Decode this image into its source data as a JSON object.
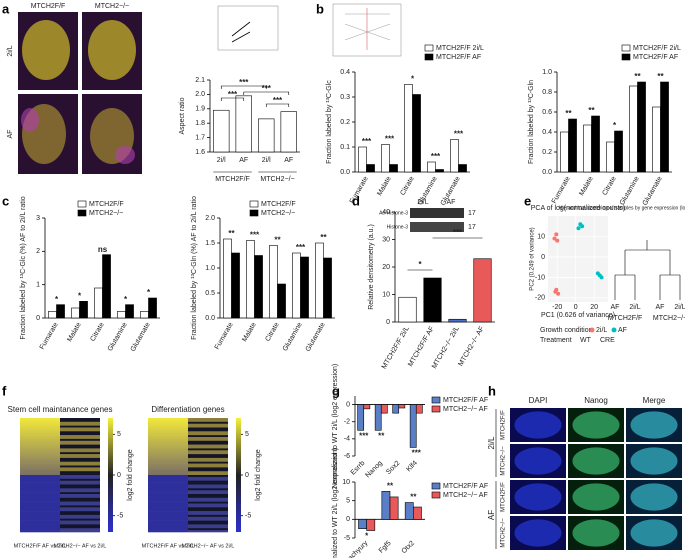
{
  "panel_labels": [
    "a",
    "b",
    "c",
    "d",
    "e",
    "f",
    "g",
    "h"
  ],
  "panel_a_images": {
    "columns": [
      "MTCH2F/F",
      "MTCH2−/−"
    ],
    "rows": [
      "2i/L",
      "AF"
    ]
  },
  "panel_d_blot": {
    "conditions": [
      "2i/L",
      "AF"
    ],
    "proteins": [
      "Ac-Histone-3",
      "Histone-3"
    ],
    "sizes": [
      "17",
      "17"
    ]
  },
  "panel_f": {
    "titles": [
      "Stem cell maintanance genes",
      "Differentiation genes"
    ],
    "columns": [
      "MTCH2F/F AF vs 2i/L",
      "MTCH2−/− AF vs 2i/L"
    ],
    "colorbar_label": "log2 fold change",
    "colorbar_ticks": [
      5,
      0,
      -5
    ]
  },
  "panel_h": {
    "columns": [
      "DAPI",
      "Nanog",
      "Merge"
    ],
    "conditions": [
      "2i/L",
      "AF"
    ],
    "genotypes": [
      "MTCH2F/F",
      "MTCH2−/−",
      "MTCH2F/F",
      "MTCH2−/−"
    ]
  },
  "chart_data": [
    {
      "type": "bar",
      "ylabel": "Aspect ratio",
      "categories": [
        "2i/l",
        "AF",
        "2i/l",
        "AF"
      ],
      "groups": [
        "MTCH2F/F",
        "MTCH2−/−"
      ],
      "values": [
        1.89,
        1.99,
        1.83,
        1.88
      ],
      "color": "#ffffff",
      "ylim": [
        1.6,
        2.1
      ],
      "yticks": [
        1.6,
        1.7,
        1.8,
        1.9,
        {
          "value": 2,
          "label": "2.0"
        },
        2.1
      ],
      "annotations": [
        "***",
        "***",
        "***",
        "***"
      ]
    },
    {
      "type": "bar",
      "ylabel": "Fraction labeled by ¹³C-Glc",
      "categories": [
        "Fumarate",
        "Malate",
        "Citrate",
        "Glutamine",
        "Glutamate"
      ],
      "series": [
        {
          "name": "MTCH2F/F 2i/L",
          "color": "#ffffff",
          "values": [
            0.1,
            0.11,
            0.35,
            0.04,
            0.13
          ]
        },
        {
          "name": "MTCH2F/F AF",
          "color": "#000000",
          "values": [
            0.03,
            0.03,
            0.31,
            0.01,
            0.03
          ]
        }
      ],
      "ylim": [
        0,
        0.4
      ],
      "yticks": [
        {
          "value": 0,
          "label": "0.0"
        },
        0.1,
        0.2,
        0.3,
        0.4
      ],
      "annotations": [
        "***",
        "***",
        "*",
        "***",
        "***"
      ]
    },
    {
      "type": "bar",
      "ylabel": "Fraction labeled by ¹³C-Gln",
      "categories": [
        "Fumarate",
        "Malate",
        "Citrate",
        "Glutamine",
        "Glutamate"
      ],
      "series": [
        {
          "name": "MTCH2F/F 2i/L",
          "color": "#ffffff",
          "values": [
            0.4,
            0.47,
            0.3,
            0.86,
            0.65
          ]
        },
        {
          "name": "MTCH2F/F AF",
          "color": "#000000",
          "values": [
            0.53,
            0.56,
            0.41,
            0.9,
            0.9
          ]
        }
      ],
      "ylim": [
        0,
        1
      ],
      "yticks": [
        {
          "value": 0,
          "label": "0.0"
        },
        0.2,
        0.4,
        0.6,
        0.8,
        {
          "value": 1,
          "label": "1.0"
        }
      ],
      "annotations": [
        "**",
        "**",
        "*",
        "**",
        "**"
      ]
    },
    {
      "type": "bar",
      "ylabel": "Fraction labeled by ¹³C-Glc (%) AF to 2i/L ratio",
      "categories": [
        "Fumarate",
        "Malate",
        "Citrate",
        "Glutamine",
        "Glutamate"
      ],
      "series": [
        {
          "name": "MTCH2F/F",
          "color": "#ffffff",
          "values": [
            0.2,
            0.3,
            0.9,
            0.2,
            0.2
          ]
        },
        {
          "name": "MTCH2−/−",
          "color": "#000000",
          "values": [
            0.4,
            0.5,
            1.9,
            0.4,
            0.6
          ]
        }
      ],
      "ylim": [
        0,
        3
      ],
      "yticks": [
        0,
        1,
        2,
        3
      ],
      "annotations": [
        "*",
        "*",
        "ns",
        "*",
        "*"
      ]
    },
    {
      "type": "bar",
      "ylabel": "Fraction labeled by ¹³C-Gln (%) AF to 2i/L ratio",
      "categories": [
        "Fumarate",
        "Malate",
        "Citrate",
        "Glutamine",
        "Glutamate"
      ],
      "series": [
        {
          "name": "MTCH2F/F",
          "color": "#ffffff",
          "values": [
            1.58,
            1.55,
            1.45,
            1.3,
            1.5
          ]
        },
        {
          "name": "MTCH2−/−",
          "color": "#000000",
          "values": [
            1.3,
            1.25,
            0.68,
            1.22,
            1.2
          ]
        }
      ],
      "ylim": [
        0,
        2
      ],
      "yticks": [
        {
          "value": 0,
          "label": "0.0"
        },
        0.5,
        {
          "value": 1,
          "label": "1.0"
        },
        1.5,
        {
          "value": 2,
          "label": "2.0"
        }
      ],
      "annotations": [
        "**",
        "***",
        "**",
        "***",
        "**"
      ]
    },
    {
      "type": "bar",
      "ylabel": "Relative densitometry (a.u.)",
      "categories": [
        "MTCH2F/F 2i/L",
        "MTCH2F/F AF",
        "MTCH2−/− 2i/L",
        "MTCH2−/− AF"
      ],
      "values": [
        9,
        16,
        1,
        23
      ],
      "colors": [
        "#ffffff",
        "#000000",
        "#4a6fd0",
        "#e8595a"
      ],
      "ylim": [
        0,
        40
      ],
      "yticks": [
        0,
        10,
        20,
        30,
        40
      ],
      "annotations": [
        "*",
        "***"
      ]
    },
    {
      "type": "scatter",
      "title": "PCA of log(normalized counts)",
      "xlabel": "PC1 (0.626 of variance)",
      "ylabel": "PC2 (0.249 of variance)",
      "series": [
        {
          "name": "2i/L",
          "color": "#f8766d",
          "x": [
            -23,
            -21,
            -20,
            -22,
            -21,
            -19
          ],
          "y": [
            9,
            11,
            8,
            -17,
            -16,
            -18
          ]
        },
        {
          "name": "AF",
          "color": "#00bfc4",
          "x": [
            3,
            5,
            7,
            24,
            26,
            28
          ],
          "y": [
            14,
            16,
            15,
            -8,
            -9,
            -10
          ]
        }
      ],
      "legend_title": "Growth condition",
      "treatment_title": "Treatment",
      "treatments": [
        "WT",
        "CRE"
      ],
      "xlim": [
        -30,
        35
      ],
      "ylim": [
        -22,
        20
      ],
      "xticks": [
        -20,
        0,
        20
      ],
      "yticks": [
        -20,
        -10,
        0,
        10
      ],
      "dendrogram_title": "Hierarchical clustering of samples by gene expression (log of normalized counts)",
      "dendrogram_leaves": [
        "AF",
        "2i/L",
        "AF",
        "2i/L"
      ],
      "dendrogram_groups": [
        "MTCH2F/F",
        "MTCH2−/−"
      ]
    },
    {
      "type": "bar",
      "ylabel": "Normalized to WT 2i/L (log2 expression)",
      "categories": [
        "Esrrb",
        "Nanog",
        "Sox2",
        "Klf4"
      ],
      "series": [
        {
          "name": "MTCH2F/F AF",
          "color": "#5b7fc7",
          "values": [
            -3,
            -3,
            -1,
            -5
          ]
        },
        {
          "name": "MTCH2−/− AF",
          "color": "#e8595a",
          "values": [
            -0.5,
            -1,
            -0.4,
            -1
          ]
        }
      ],
      "ylim": [
        -6,
        1
      ],
      "yticks": [
        -6,
        -4,
        -2,
        0
      ],
      "annotations": [
        "***",
        "**",
        null,
        "***"
      ]
    },
    {
      "type": "bar",
      "ylabel": "Normalized to WT 2i/L (log2 expression)",
      "categories": [
        "T-brachyury",
        "Fgf5",
        "Otx2"
      ],
      "series": [
        {
          "name": "MTCH2F/F AF",
          "color": "#5b7fc7",
          "values": [
            -2.5,
            7.5,
            4.5
          ]
        },
        {
          "name": "MTCH2−/− AF",
          "color": "#e8595a",
          "values": [
            -3,
            6,
            3.3
          ]
        }
      ],
      "ylim": [
        -5,
        10
      ],
      "yticks": [
        -5,
        0,
        5,
        10
      ],
      "annotations": [
        "*",
        "**",
        "**"
      ]
    }
  ]
}
